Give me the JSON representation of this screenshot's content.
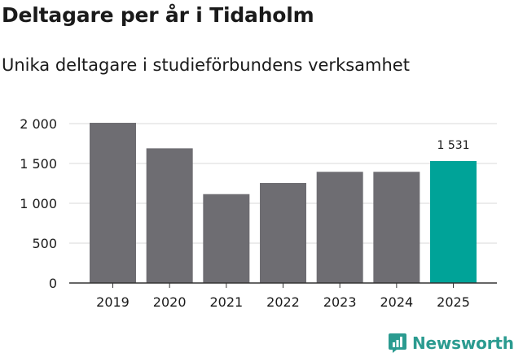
{
  "header": {
    "title": "Deltagare per år i Tidaholm",
    "subtitle": "Unika deltagare i studieförbundens verksamhet"
  },
  "brand": {
    "name": "Newsworthy",
    "icon": "newsworthy-logo-icon",
    "color": "#2b9b90"
  },
  "colors": {
    "bar": "#6e6d72",
    "highlight": "#00a398",
    "grid": "#d9d9d9",
    "axis": "#333333"
  },
  "chart_data": {
    "type": "bar",
    "categories": [
      "2019",
      "2020",
      "2021",
      "2022",
      "2023",
      "2024",
      "2025"
    ],
    "values": [
      2010,
      1690,
      1115,
      1255,
      1395,
      1395,
      1531
    ],
    "highlight_index": 6,
    "data_labels": [
      {
        "index": 6,
        "text": "1 531"
      }
    ],
    "ylim": [
      0,
      2000
    ],
    "yticks": [
      0,
      500,
      1000,
      1500,
      2000
    ],
    "ytick_labels": [
      "0",
      "500",
      "1 000",
      "1 500",
      "2 000"
    ],
    "grid": true,
    "xlabel": "",
    "ylabel": ""
  }
}
